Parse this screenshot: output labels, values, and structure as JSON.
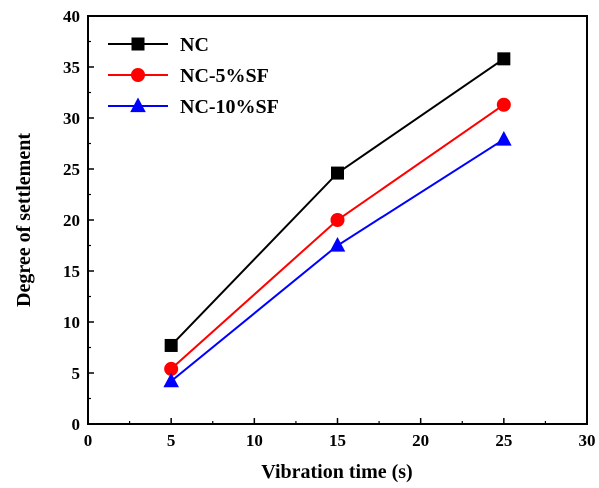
{
  "chart_data": {
    "type": "line",
    "xlabel": "Vibration time (s)",
    "ylabel": "Degree of settlement",
    "xlim": [
      0,
      30
    ],
    "ylim": [
      0,
      40
    ],
    "xticks": [
      0,
      5,
      10,
      15,
      20,
      25,
      30
    ],
    "yticks": [
      0,
      5,
      10,
      15,
      20,
      25,
      30,
      35,
      40
    ],
    "grid": false,
    "legend_position": "top-left",
    "x": [
      5,
      15,
      25
    ],
    "series": [
      {
        "name": "NC",
        "values": [
          7.7,
          24.6,
          35.8
        ],
        "color": "#000000",
        "marker": "square"
      },
      {
        "name": "NC-5%SF",
        "values": [
          5.4,
          20.0,
          31.3
        ],
        "color": "#ff0000",
        "marker": "circle"
      },
      {
        "name": "NC-10%SF",
        "values": [
          4.2,
          17.5,
          27.9
        ],
        "color": "#0000ff",
        "marker": "triangle"
      }
    ]
  }
}
